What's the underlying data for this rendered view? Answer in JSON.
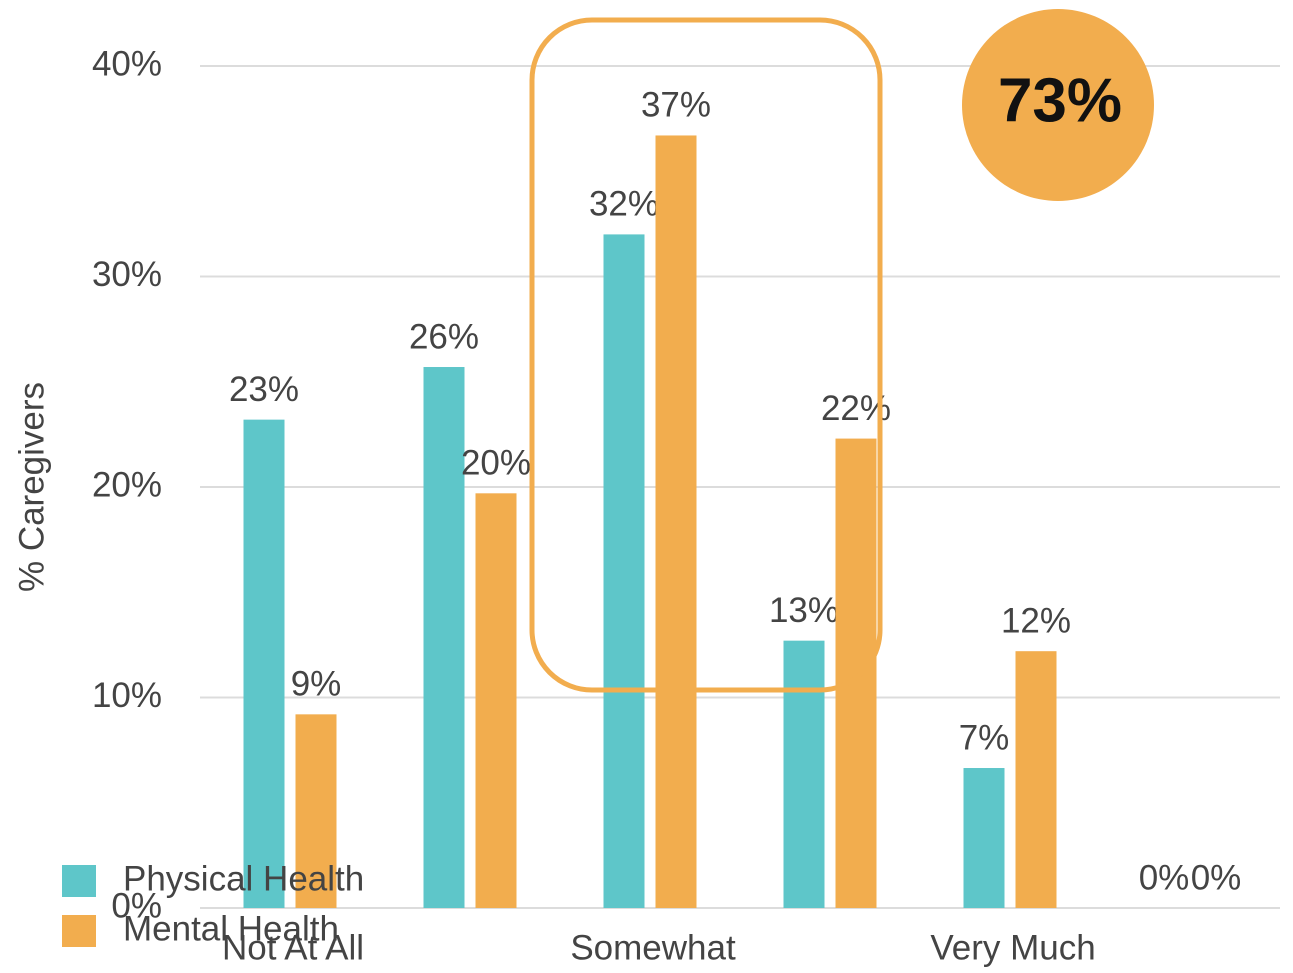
{
  "chart_data": {
    "type": "bar",
    "y_label": "% Caregivers",
    "annotation": "73%",
    "categories": [
      "Not At All",
      null,
      "Somewhat",
      null,
      "Very Much",
      null
    ],
    "series": [
      {
        "name": "Physical Health",
        "color": "#5ec6c9",
        "values": [
          23.2,
          25.7,
          32.0,
          12.7,
          6.65,
          0
        ],
        "value_labels": [
          "23%",
          "26%",
          "32%",
          "13%",
          "7%",
          "0%"
        ]
      },
      {
        "name": "Mental Health",
        "color": "#f2ad4e",
        "values": [
          9.2,
          19.7,
          36.7,
          22.3,
          12.2,
          0
        ],
        "value_labels": [
          "9%",
          "20%",
          "37%",
          "22%",
          "12%",
          "0%"
        ]
      }
    ],
    "ylim": [
      0,
      40
    ],
    "yticks": [
      {
        "value": 0,
        "label": "0%"
      },
      {
        "value": 10,
        "label": "10%"
      },
      {
        "value": 20,
        "label": "20%"
      },
      {
        "value": 30,
        "label": "30%"
      },
      {
        "value": 40,
        "label": "40%"
      }
    ],
    "grid": true,
    "legend": "bottom-left"
  }
}
